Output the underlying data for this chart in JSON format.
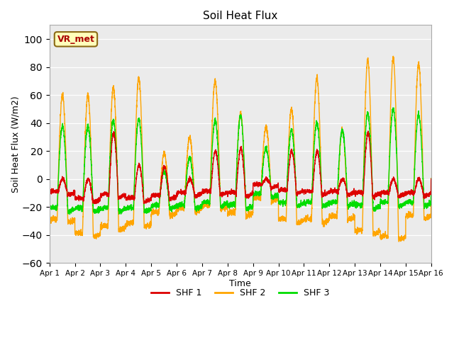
{
  "title": "Soil Heat Flux",
  "xlabel": "Time",
  "ylabel": "Soil Heat Flux (W/m2)",
  "ylim": [
    -60,
    110
  ],
  "yticks": [
    -60,
    -40,
    -20,
    0,
    20,
    40,
    60,
    80,
    100
  ],
  "xlim": [
    0,
    15
  ],
  "xtick_labels": [
    "Apr 1",
    "Apr 2",
    "Apr 3",
    "Apr 4",
    "Apr 5",
    "Apr 6",
    "Apr 7",
    "Apr 8",
    "Apr 9",
    "Apr 10",
    "Apr 11",
    "Apr 12",
    "Apr 13",
    "Apr 14",
    "Apr 15",
    "Apr 16"
  ],
  "colors": {
    "SHF1": "#dd0000",
    "SHF2": "#ffa500",
    "SHF3": "#00dd00"
  },
  "legend_labels": [
    "SHF 1",
    "SHF 2",
    "SHF 3"
  ],
  "annotation_text": "VR_met",
  "bg_color": "#ebebeb",
  "linewidth": 1.0,
  "shf1_peaks": [
    0,
    0,
    33,
    10,
    9,
    0,
    20,
    22,
    0,
    20,
    20,
    0,
    33,
    0,
    0
  ],
  "shf1_night": [
    -10,
    -15,
    -12,
    -15,
    -13,
    -11,
    -10,
    -11,
    -5,
    -9,
    -10,
    -10,
    -11,
    -11,
    -11
  ],
  "shf2_peaks": [
    60,
    60,
    65,
    72,
    18,
    30,
    70,
    47,
    37,
    50,
    72,
    35,
    85,
    86,
    82
  ],
  "shf2_night": [
    -30,
    -40,
    -35,
    -33,
    -25,
    -22,
    -20,
    -25,
    -15,
    -30,
    -30,
    -28,
    -38,
    -42,
    -27
  ],
  "shf3_peaks": [
    38,
    38,
    42,
    43,
    5,
    15,
    42,
    45,
    22,
    35,
    40,
    35,
    47,
    50,
    46
  ],
  "shf3_night": [
    -22,
    -22,
    -22,
    -22,
    -20,
    -20,
    -18,
    -20,
    -12,
    -18,
    -18,
    -18,
    -20,
    -18,
    -18
  ]
}
